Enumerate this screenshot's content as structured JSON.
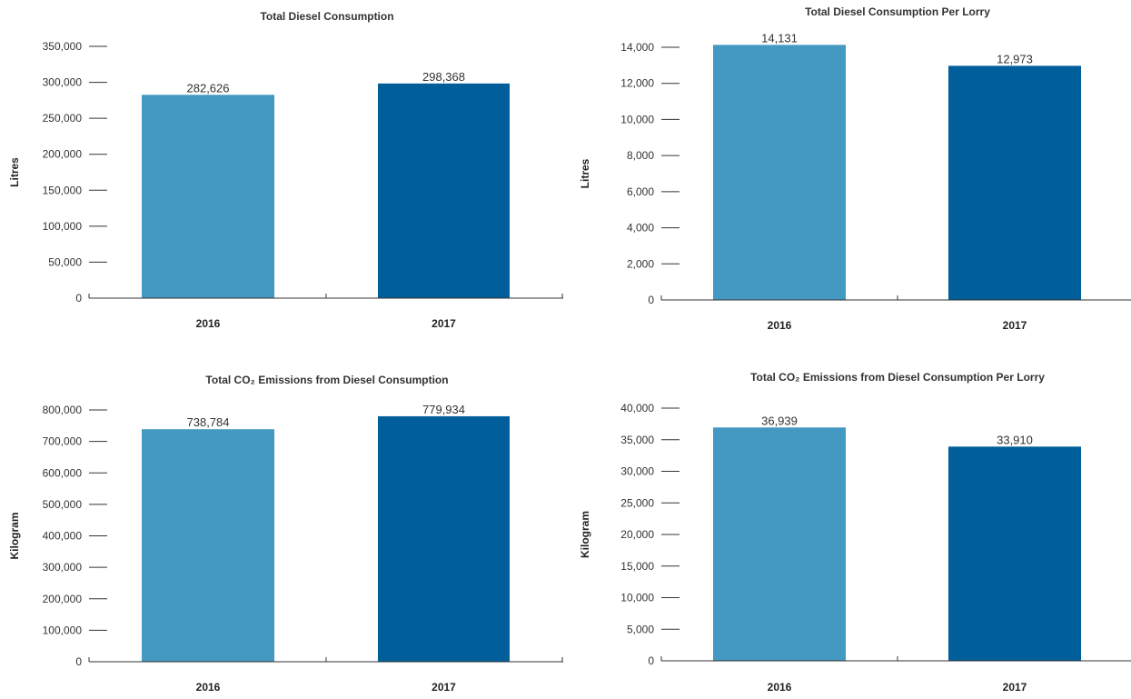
{
  "chart_data": [
    {
      "type": "bar",
      "title": "Total Diesel Consumption",
      "xlabel": "",
      "ylabel": "Litres",
      "categories": [
        "2016",
        "2017"
      ],
      "values": [
        282626,
        298368
      ],
      "value_labels": [
        "282,626",
        "298,368"
      ],
      "ylim": [
        0,
        350000
      ],
      "yticks": [
        0,
        50000,
        100000,
        150000,
        200000,
        250000,
        300000,
        350000
      ],
      "ytick_labels": [
        "0",
        "50,000",
        "100,000",
        "150,000",
        "200,000",
        "250,000",
        "300,000",
        "350,000"
      ],
      "colors": [
        "#4499c2",
        "#005f9a"
      ],
      "grid": false
    },
    {
      "type": "bar",
      "title": "Total Diesel Consumption Per Lorry",
      "xlabel": "",
      "ylabel": "Litres",
      "categories": [
        "2016",
        "2017"
      ],
      "values": [
        14131,
        12973
      ],
      "value_labels": [
        "14,131",
        "12,973"
      ],
      "ylim": [
        0,
        14000
      ],
      "yticks": [
        0,
        2000,
        4000,
        6000,
        8000,
        10000,
        12000,
        14000
      ],
      "ytick_labels": [
        "0",
        "2,000",
        "4,000",
        "6,000",
        "8,000",
        "10,000",
        "12,000",
        "14,000"
      ],
      "colors": [
        "#4499c2",
        "#005f9a"
      ],
      "grid": false
    },
    {
      "type": "bar",
      "title": "Total CO₂ Emissions from Diesel Consumption",
      "xlabel": "",
      "ylabel": "Kilogram",
      "categories": [
        "2016",
        "2017"
      ],
      "values": [
        738784,
        779934
      ],
      "value_labels": [
        "738,784",
        "779,934"
      ],
      "ylim": [
        0,
        800000
      ],
      "yticks": [
        0,
        100000,
        200000,
        300000,
        400000,
        500000,
        600000,
        700000,
        800000
      ],
      "ytick_labels": [
        "0",
        "100,000",
        "200,000",
        "300,000",
        "400,000",
        "500,000",
        "600,000",
        "700,000",
        "800,000"
      ],
      "colors": [
        "#4499c2",
        "#005f9a"
      ],
      "grid": false
    },
    {
      "type": "bar",
      "title": "Total CO₂ Emissions from Diesel Consumption Per Lorry",
      "xlabel": "",
      "ylabel": "Kilogram",
      "categories": [
        "2016",
        "2017"
      ],
      "values": [
        36939,
        33910
      ],
      "value_labels": [
        "36,939",
        "33,910"
      ],
      "ylim": [
        0,
        40000
      ],
      "yticks": [
        0,
        5000,
        10000,
        15000,
        20000,
        25000,
        30000,
        35000,
        40000
      ],
      "ytick_labels": [
        "0",
        "5,000",
        "10,000",
        "15,000",
        "20,000",
        "25,000",
        "30,000",
        "35,000",
        "40,000"
      ],
      "colors": [
        "#4499c2",
        "#005f9a"
      ],
      "grid": false
    }
  ]
}
